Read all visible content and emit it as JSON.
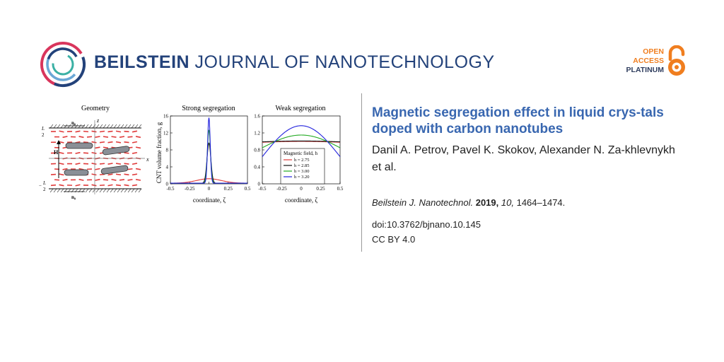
{
  "header": {
    "journal_bold": "BEILSTEIN",
    "journal_rest": "JOURNAL OF NANOTECHNOLOGY",
    "logo_icon": "beilstein-rings-logo",
    "badge": {
      "line1": "OPEN",
      "line2": "ACCESS",
      "line3": "PLATINUM",
      "icon": "open-lock-icon"
    },
    "colors": {
      "brand": "#23427a",
      "title": "#3967b0",
      "oa_orange": "#f07e1f"
    }
  },
  "figure": {
    "panel1_title": "Geometry",
    "panel2_title": "Strong segregation",
    "panel3_title": "Weak segregation",
    "geo_labels": {
      "n0": "n₀",
      "z": "z",
      "x": "x",
      "H": "H",
      "Ltop_num": "L",
      "Ltop_den": "2",
      "Lbot_num": "L",
      "Lbot_den": "2",
      "minus": "−"
    },
    "ylabel": "CNT volume fraction, g",
    "xlabel": "coordinate, ζ",
    "legend_title": "Magnetic field, h",
    "legend_entries": [
      "h = 2.75",
      "h = 2.85",
      "h = 3.00",
      "h = 3.20"
    ]
  },
  "chart_data": [
    {
      "type": "line",
      "title": "Strong segregation",
      "xlabel": "coordinate, ζ",
      "ylabel": "CNT volume fraction, g",
      "xlim": [
        -0.5,
        0.5
      ],
      "ylim": [
        0,
        16
      ],
      "xticks": [
        "-0.5",
        "-0.25",
        "0",
        "0.25",
        "0.5"
      ],
      "yticks": [
        "0",
        "4",
        "8",
        "12",
        "16"
      ],
      "series": [
        {
          "name": "h = 2.75",
          "color": "#e03a3a",
          "peak": 1.2,
          "width": 0.16
        },
        {
          "name": "h = 2.85",
          "color": "#111111",
          "peak": 9.6,
          "width": 0.025
        },
        {
          "name": "h = 3.00",
          "color": "#22aa22",
          "peak": 12.7,
          "width": 0.02
        },
        {
          "name": "h = 3.20",
          "color": "#2222dd",
          "peak": 15.6,
          "width": 0.017
        }
      ]
    },
    {
      "type": "line",
      "title": "Weak segregation",
      "xlabel": "coordinate, ζ",
      "xlim": [
        -0.5,
        0.5
      ],
      "ylim": [
        0,
        1.6
      ],
      "xticks": [
        "-0.5",
        "-0.25",
        "0",
        "0.25",
        "0.5"
      ],
      "yticks": [
        "0",
        "0.4",
        "0.8",
        "1.2",
        "1.6"
      ],
      "legend": "center",
      "series": [
        {
          "name": "h = 2.75",
          "color": "#e03a3a",
          "center": 1.0,
          "edge": 0.98
        },
        {
          "name": "h = 2.85",
          "color": "#111111",
          "center": 1.01,
          "edge": 0.99
        },
        {
          "name": "h = 3.00",
          "color": "#22aa22",
          "center": 1.15,
          "edge": 0.85
        },
        {
          "name": "h = 3.20",
          "color": "#2222dd",
          "center": 1.37,
          "edge": 0.64
        }
      ]
    }
  ],
  "article": {
    "title": "Magnetic segregation effect in liquid crys-tals doped with carbon nanotubes",
    "authors": "Danil A. Petrov, Pavel K. Skokov, Alexander N. Za-khlevnykh et al.",
    "citation_journal": "Beilstein J. Nanotechnol.",
    "citation_year": "2019,",
    "citation_volume": "10,",
    "citation_pages": "1464–1474.",
    "doi": "doi:10.3762/bjnano.10.145",
    "license": "CC BY 4.0"
  }
}
